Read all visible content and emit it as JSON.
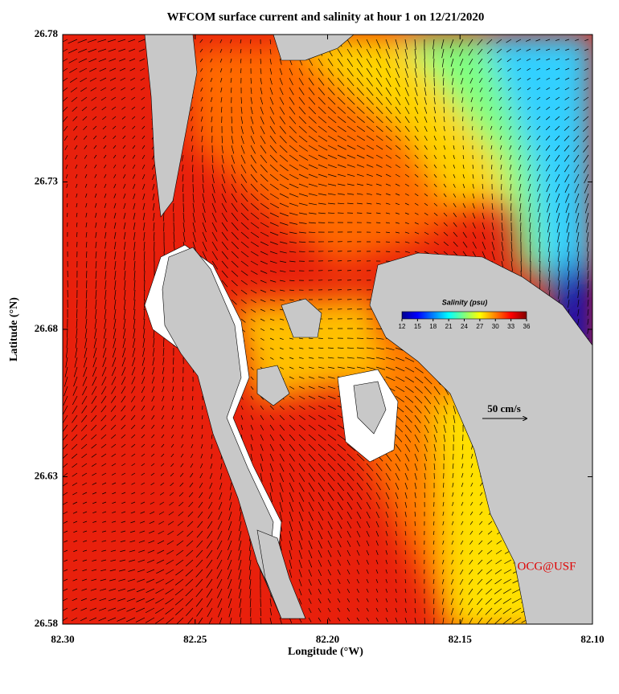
{
  "chart_data": {
    "type": "map",
    "title": "WFCOM surface current and salinity at hour 1 on 12/21/2020",
    "x_label": "Longitude (°W)",
    "y_label": "Latitude (°N)",
    "xlim": [
      82.3,
      82.1
    ],
    "xticks": [
      {
        "value": 82.3,
        "label": "82.30"
      },
      82.25,
      {
        "value": 82.2,
        "label": "82.20"
      },
      82.15,
      {
        "value": 82.1,
        "label": "82.10"
      }
    ],
    "ylim": [
      26.58,
      26.78
    ],
    "yticks": [
      26.58,
      26.63,
      26.68,
      26.73,
      26.78
    ],
    "colorbar": {
      "label": "Salinity (psu)",
      "lim": [
        12,
        36
      ],
      "ticks": [
        12,
        15,
        18,
        21,
        24,
        27,
        30,
        33,
        36
      ]
    },
    "scale_label": "50 cm/s",
    "credit": "OCG@USF"
  }
}
